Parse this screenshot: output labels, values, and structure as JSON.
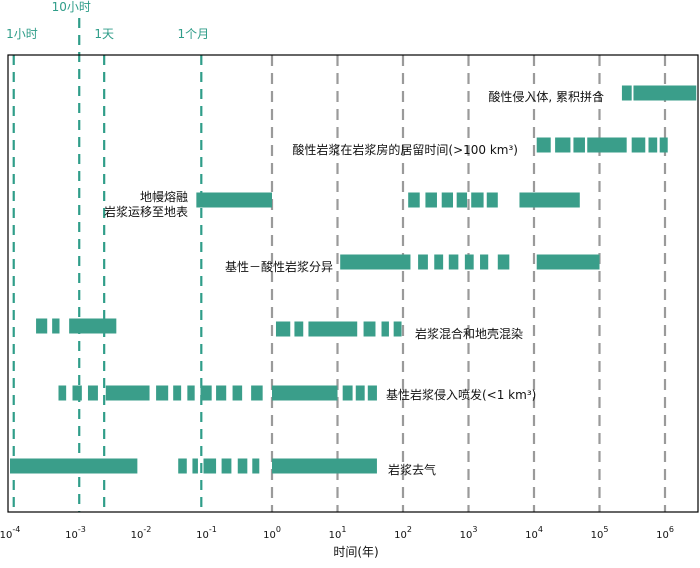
{
  "chart_data": {
    "type": "timeline",
    "xscale": "log",
    "xlim": [
      0.0001,
      3000000
    ],
    "xlabel": "时间(年)",
    "tick_labels": [
      {
        "base": "10",
        "exp": "-4",
        "value": 0.0001
      },
      {
        "base": "10",
        "exp": "-3",
        "value": 0.001
      },
      {
        "base": "10",
        "exp": "-2",
        "value": 0.01
      },
      {
        "base": "10",
        "exp": "-1",
        "value": 0.1
      },
      {
        "base": "10",
        "exp": "0",
        "value": 1
      },
      {
        "base": "10",
        "exp": "1",
        "value": 10
      },
      {
        "base": "10",
        "exp": "2",
        "value": 100
      },
      {
        "base": "10",
        "exp": "3",
        "value": 1000
      },
      {
        "base": "10",
        "exp": "4",
        "value": 10000
      },
      {
        "base": "10",
        "exp": "5",
        "value": 100000
      },
      {
        "base": "10",
        "exp": "6",
        "value": 1000000
      }
    ],
    "reference_lines": [
      {
        "label": "1小时",
        "value": 0.000114
      },
      {
        "label": "10小时",
        "value": 0.00114
      },
      {
        "label": "1天",
        "value": 0.00274
      },
      {
        "label": "1个月",
        "value": 0.0833
      }
    ],
    "processes": [
      {
        "label_lines": [
          "酸性侵入体, 累积拼合"
        ],
        "segments": [
          [
            220000,
            310000
          ],
          [
            330000,
            3000000
          ]
        ]
      },
      {
        "label_lines": [
          "酸性岩浆在岩浆房的居留时间(>100 km³)"
        ],
        "segments": [
          [
            11000,
            18000
          ],
          [
            21000,
            36000
          ],
          [
            40000,
            60000
          ],
          [
            65000,
            260000
          ],
          [
            310000,
            500000
          ],
          [
            560000,
            760000
          ],
          [
            830000,
            1100000
          ]
        ]
      },
      {
        "label_lines": [
          "地幔熔融",
          "岩浆运移至地表"
        ],
        "segments": [
          [
            0.07,
            1.0
          ]
        ]
      },
      {
        "label_lines": [],
        "segments": [
          [
            120,
            180
          ],
          [
            220,
            330
          ],
          [
            390,
            580
          ],
          [
            660,
            950
          ],
          [
            1100,
            1700
          ],
          [
            1900,
            2800
          ],
          [
            6000,
            50000
          ]
        ]
      },
      {
        "label_lines": [
          "基性－酸性岩浆分异"
        ],
        "segments": [
          [
            11,
            130
          ],
          [
            170,
            240
          ],
          [
            300,
            410
          ],
          [
            500,
            700
          ],
          [
            880,
            1200
          ],
          [
            1500,
            2000
          ],
          [
            2800,
            4200
          ],
          [
            11000,
            100000
          ]
        ]
      },
      {
        "label_lines": [],
        "segments": [
          [
            0.00025,
            0.00037
          ],
          [
            0.00044,
            0.00057
          ],
          [
            0.0008,
            0.0042
          ]
        ]
      },
      {
        "label_lines": [
          "岩浆混合和地壳混染"
        ],
        "segments": [
          [
            1.15,
            1.9
          ],
          [
            2.2,
            3.0
          ],
          [
            3.6,
            20
          ],
          [
            25,
            38
          ],
          [
            47,
            61
          ],
          [
            72,
            95
          ]
        ]
      },
      {
        "label_lines": [],
        "segments": [
          [
            0.00055,
            0.00072
          ],
          [
            0.0009,
            0.00125
          ],
          [
            0.00155,
            0.0022
          ],
          [
            0.0029,
            0.0135
          ],
          [
            0.017,
            0.026
          ],
          [
            0.031,
            0.041
          ],
          [
            0.051,
            0.066
          ],
          [
            0.081,
            0.12
          ],
          [
            0.14,
            0.2
          ],
          [
            0.25,
            0.35
          ],
          [
            0.48,
            0.72
          ]
        ]
      },
      {
        "label_lines": [
          "基性岩浆侵入喷发(<1 km³)"
        ],
        "segments": [
          [
            1.0,
            10
          ],
          [
            12,
            17
          ],
          [
            19,
            26
          ],
          [
            29,
            40
          ]
        ]
      },
      {
        "label_lines": [],
        "segments": [
          [
            0.0001,
            0.0088
          ],
          [
            0.037,
            0.05
          ],
          [
            0.061,
            0.074
          ],
          [
            0.09,
            0.14
          ],
          [
            0.17,
            0.24
          ],
          [
            0.3,
            0.42
          ],
          [
            0.5,
            0.64
          ]
        ]
      },
      {
        "label_lines": [
          "岩浆去气"
        ],
        "segments": [
          [
            1.0,
            40
          ]
        ]
      }
    ]
  }
}
